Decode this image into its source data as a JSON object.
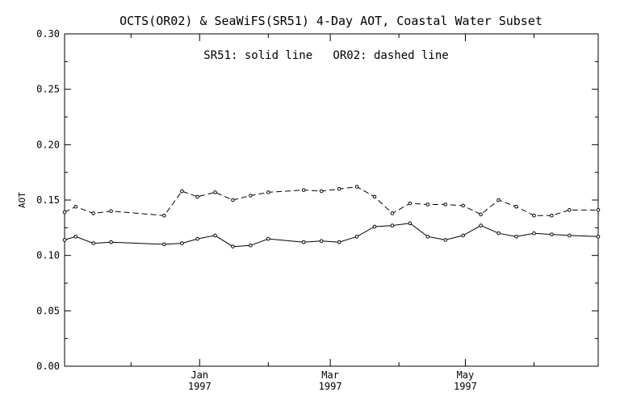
{
  "chart_data": {
    "type": "line",
    "title": "OCTS(OR02) & SeaWiFS(SR51) 4-Day AOT, Coastal Water Subset",
    "annotation": "SR51: solid line   OR02: dashed line",
    "xlabel": "",
    "ylabel": "AOT",
    "xlim": [
      "1996-11-01",
      "1997-06-30"
    ],
    "ylim": [
      0.0,
      0.3
    ],
    "yticks": [
      "0.00",
      "0.05",
      "0.10",
      "0.15",
      "0.20",
      "0.25",
      "0.30"
    ],
    "xticks": [
      {
        "date": "1997-01-01",
        "label": "Jan",
        "sublabel": "1997"
      },
      {
        "date": "1997-03-01",
        "label": "Mar",
        "sublabel": "1997"
      },
      {
        "date": "1997-05-01",
        "label": "May",
        "sublabel": "1997"
      }
    ],
    "grid": false,
    "series": [
      {
        "name": "SR51",
        "style": "solid",
        "color": "#000000",
        "points": [
          {
            "x": "1996-11-01",
            "y": 0.114
          },
          {
            "x": "1996-11-06",
            "y": 0.117
          },
          {
            "x": "1996-11-14",
            "y": 0.111
          },
          {
            "x": "1996-11-22",
            "y": 0.112
          },
          {
            "x": "1996-12-16",
            "y": 0.11
          },
          {
            "x": "1996-12-24",
            "y": 0.111
          },
          {
            "x": "1996-12-31",
            "y": 0.115
          },
          {
            "x": "1997-01-08",
            "y": 0.118
          },
          {
            "x": "1997-01-16",
            "y": 0.108
          },
          {
            "x": "1997-01-24",
            "y": 0.109
          },
          {
            "x": "1997-02-01",
            "y": 0.115
          },
          {
            "x": "1997-02-17",
            "y": 0.112
          },
          {
            "x": "1997-02-25",
            "y": 0.113
          },
          {
            "x": "1997-03-05",
            "y": 0.112
          },
          {
            "x": "1997-03-13",
            "y": 0.117
          },
          {
            "x": "1997-03-21",
            "y": 0.126
          },
          {
            "x": "1997-03-29",
            "y": 0.127
          },
          {
            "x": "1997-04-06",
            "y": 0.129
          },
          {
            "x": "1997-04-14",
            "y": 0.117
          },
          {
            "x": "1997-04-22",
            "y": 0.114
          },
          {
            "x": "1997-04-30",
            "y": 0.118
          },
          {
            "x": "1997-05-08",
            "y": 0.127
          },
          {
            "x": "1997-05-16",
            "y": 0.12
          },
          {
            "x": "1997-05-24",
            "y": 0.117
          },
          {
            "x": "1997-06-01",
            "y": 0.12
          },
          {
            "x": "1997-06-09",
            "y": 0.119
          },
          {
            "x": "1997-06-17",
            "y": 0.118
          },
          {
            "x": "1997-06-30",
            "y": 0.117
          }
        ]
      },
      {
        "name": "OR02",
        "style": "dashed",
        "color": "#000000",
        "points": [
          {
            "x": "1996-11-01",
            "y": 0.139
          },
          {
            "x": "1996-11-06",
            "y": 0.144
          },
          {
            "x": "1996-11-14",
            "y": 0.138
          },
          {
            "x": "1996-11-22",
            "y": 0.14
          },
          {
            "x": "1996-12-16",
            "y": 0.136
          },
          {
            "x": "1996-12-24",
            "y": 0.158
          },
          {
            "x": "1996-12-31",
            "y": 0.153
          },
          {
            "x": "1997-01-08",
            "y": 0.157
          },
          {
            "x": "1997-01-16",
            "y": 0.15
          },
          {
            "x": "1997-01-24",
            "y": 0.154
          },
          {
            "x": "1997-02-01",
            "y": 0.157
          },
          {
            "x": "1997-02-17",
            "y": 0.159
          },
          {
            "x": "1997-02-25",
            "y": 0.158
          },
          {
            "x": "1997-03-05",
            "y": 0.16
          },
          {
            "x": "1997-03-13",
            "y": 0.162
          },
          {
            "x": "1997-03-21",
            "y": 0.153
          },
          {
            "x": "1997-03-29",
            "y": 0.138
          },
          {
            "x": "1997-04-06",
            "y": 0.147
          },
          {
            "x": "1997-04-14",
            "y": 0.146
          },
          {
            "x": "1997-04-22",
            "y": 0.146
          },
          {
            "x": "1997-04-30",
            "y": 0.145
          },
          {
            "x": "1997-05-08",
            "y": 0.137
          },
          {
            "x": "1997-05-16",
            "y": 0.15
          },
          {
            "x": "1997-05-24",
            "y": 0.144
          },
          {
            "x": "1997-06-01",
            "y": 0.136
          },
          {
            "x": "1997-06-09",
            "y": 0.136
          },
          {
            "x": "1997-06-17",
            "y": 0.141
          },
          {
            "x": "1997-06-30",
            "y": 0.141
          }
        ]
      }
    ]
  }
}
